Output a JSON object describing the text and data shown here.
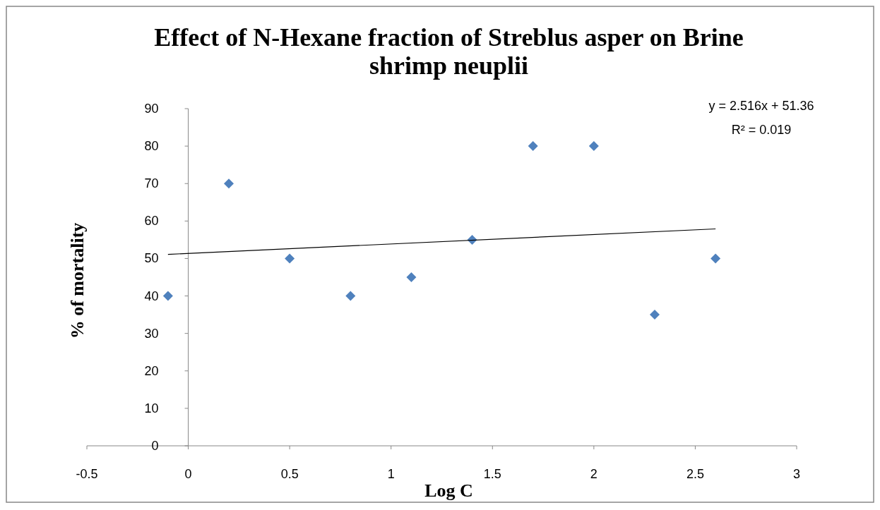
{
  "chart_data": {
    "type": "scatter",
    "title": "Effect of N-Hexane fraction of Streblus asper on Brine shrimp neuplii",
    "xlabel": "Log C",
    "ylabel": "% of mortality",
    "series": [
      {
        "color": "#4f81bd",
        "marker": "diamond",
        "x": [
          -0.1,
          0.2,
          0.5,
          0.8,
          1.1,
          1.4,
          1.7,
          2.0,
          2.3,
          2.6
        ],
        "values": [
          40,
          70,
          50,
          40,
          45,
          55,
          80,
          80,
          35,
          50
        ]
      },
      {
        "type": "line",
        "color": "#000000",
        "line_style": "solid",
        "x": [
          -0.1,
          2.6
        ],
        "values": [
          51.1,
          57.9
        ]
      }
    ],
    "xlim": [
      -0.5,
      3
    ],
    "xticks": [
      -0.5,
      0,
      0.5,
      1,
      1.5,
      2,
      2.5,
      3
    ],
    "ylim": [
      0,
      90
    ],
    "yticks": [
      0,
      10,
      20,
      30,
      40,
      50,
      60,
      70,
      80,
      90
    ],
    "grid": false,
    "annotations": [
      "y = 2.516x + 51.36",
      "R² = 0.019"
    ]
  }
}
